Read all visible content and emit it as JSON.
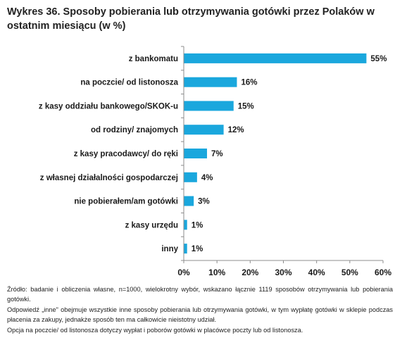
{
  "title": "Wykres 36. Sposoby pobierania lub otrzymywania gotówki przez Polaków w ostatnim miesiącu (w %)",
  "colors": {
    "bar": "#1aa7dd",
    "axis": "#8c8c8c"
  },
  "chart_data": {
    "type": "bar",
    "orientation": "horizontal",
    "categories": [
      "z bankomatu",
      "na poczcie/ od listonosza",
      "z kasy oddziału bankowego/SKOK-u",
      "od rodziny/ znajomych",
      "z kasy pracodawcy/ do ręki",
      "z własnej działalności gospodarczej",
      "nie pobierałem/am gotówki",
      "z kasy urzędu",
      "inny"
    ],
    "values": [
      55,
      16,
      15,
      12,
      7,
      4,
      3,
      1,
      1
    ],
    "value_labels": [
      "55%",
      "16%",
      "15%",
      "12%",
      "7%",
      "4%",
      "3%",
      "1%",
      "1%"
    ],
    "x_ticks": [
      0,
      10,
      20,
      30,
      40,
      50,
      60
    ],
    "x_tick_labels": [
      "0%",
      "10%",
      "20%",
      "30%",
      "40%",
      "50%",
      "60%"
    ],
    "xlim": [
      0,
      60
    ],
    "grid": false,
    "legend": "none"
  },
  "notes": [
    "Źródło: badanie i obliczenia własne, n=1000, wielokrotny wybór, wskazano łącznie 1119 sposobów otrzymywania lub pobierania gotówki.",
    "Odpowiedź „inne\" obejmuje wszystkie inne sposoby pobierania lub otrzymywania gotówki, w tym wypłatę gotówki w sklepie podczas płacenia za zakupy, jednakże sposób ten ma całkowicie nieistotny udział.",
    "Opcja na poczcie/ od listonosza dotyczy wypłat i poborów gotówki w placówce poczty lub od listonosza."
  ]
}
